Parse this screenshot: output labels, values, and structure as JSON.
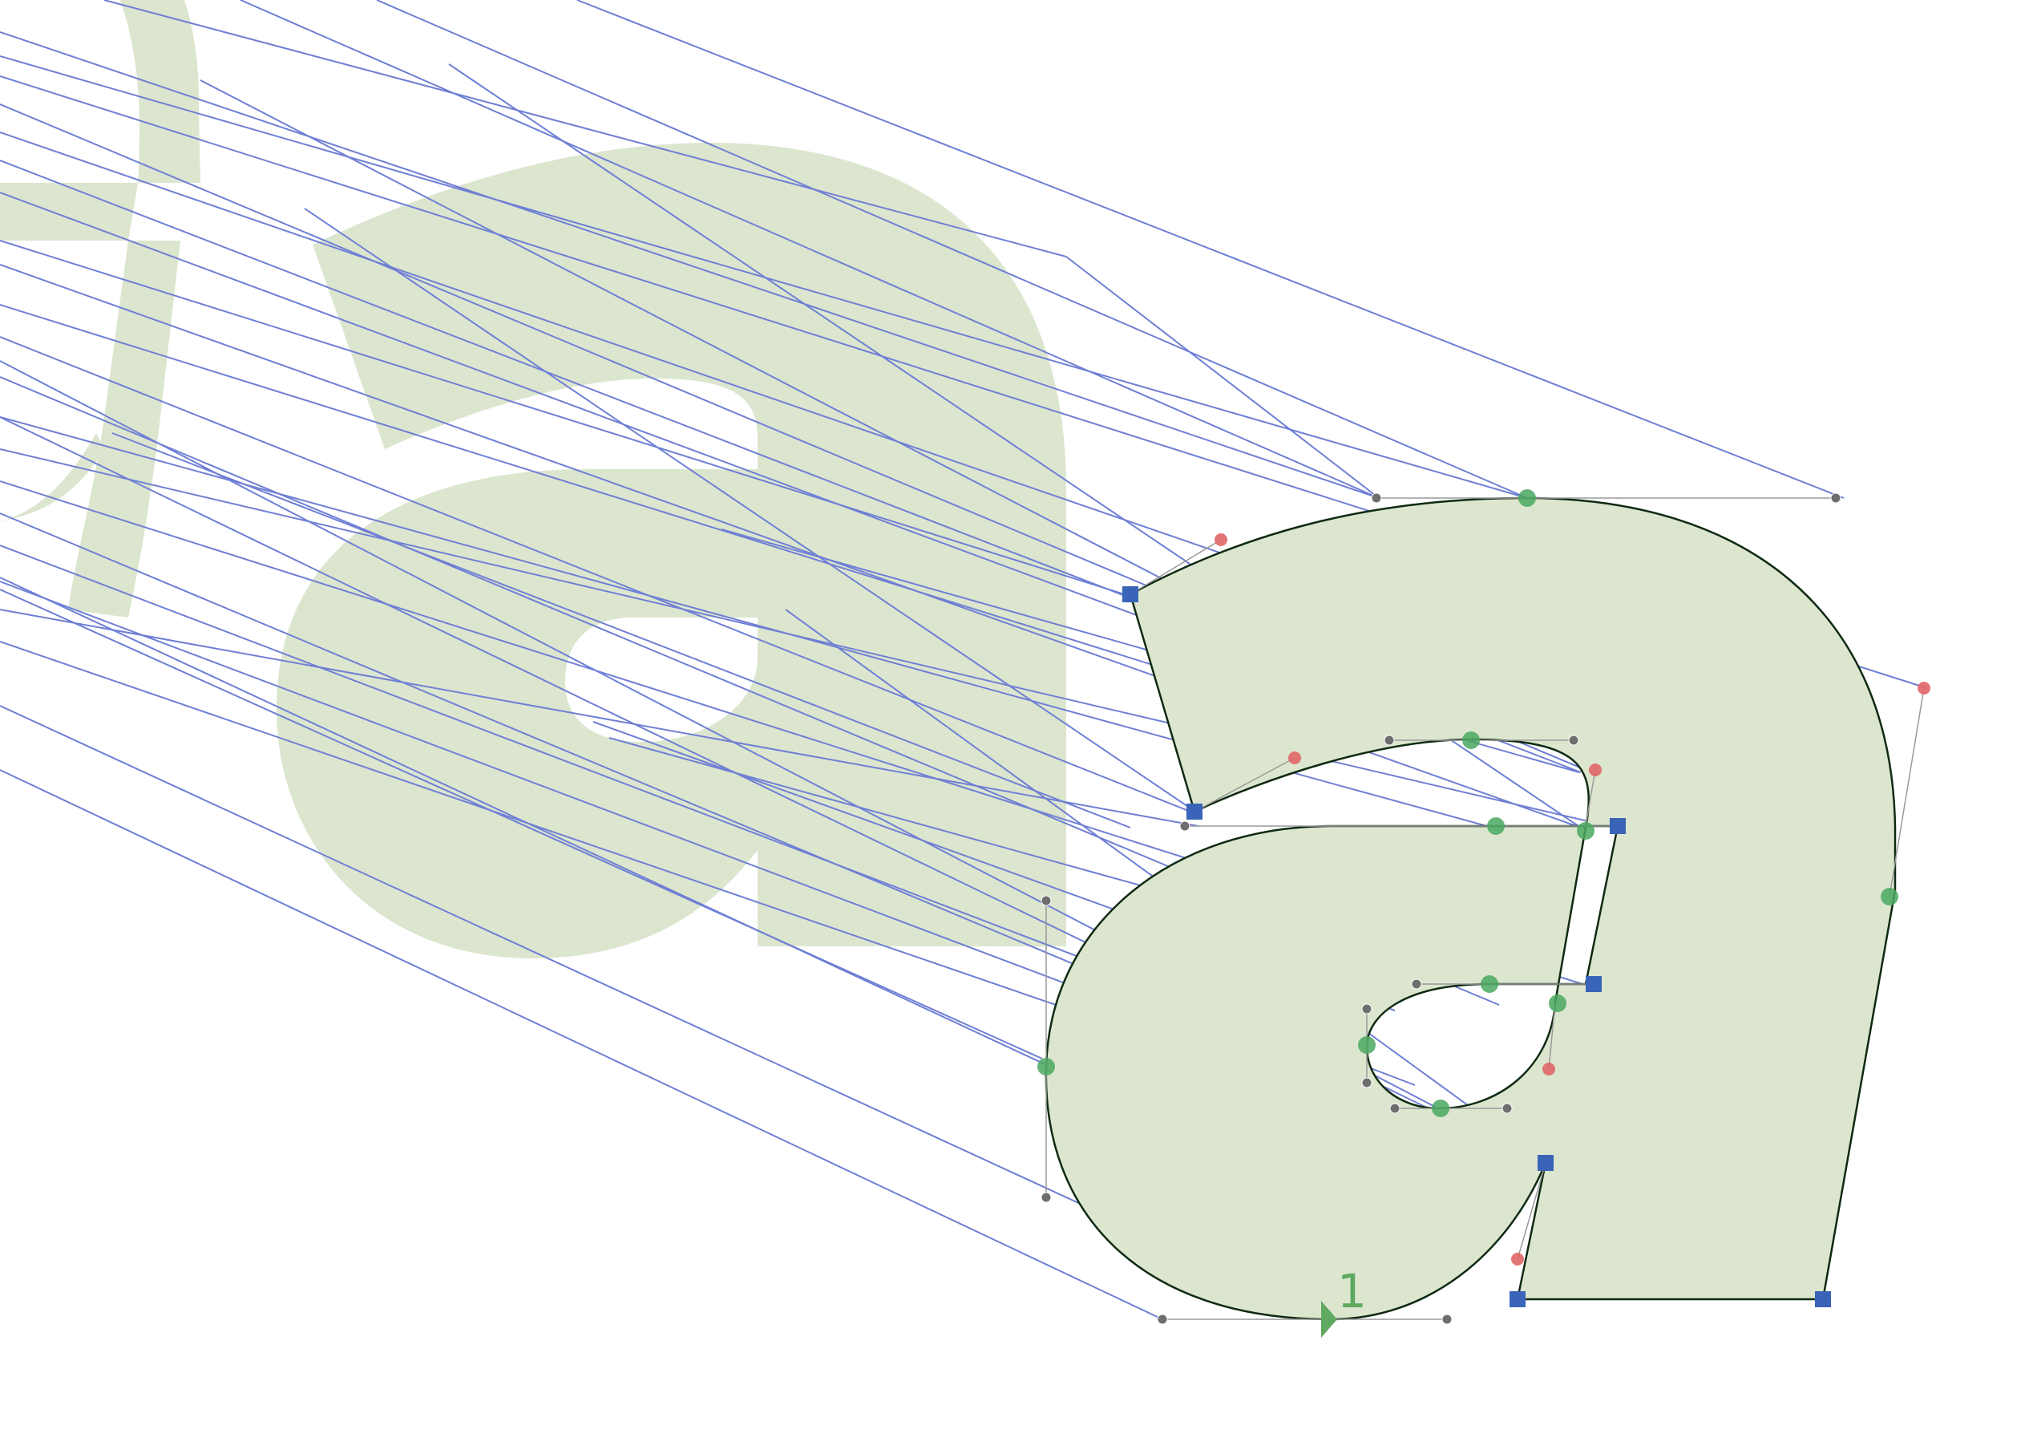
{
  "editor": {
    "view": "glyph-outline",
    "start_point_label": "1"
  },
  "colors": {
    "background": "#ffffff",
    "glyph_fill": "#dce6cf",
    "outline": "#0f2a12",
    "interpolation_line": "#6f7fd4",
    "handle_line": "#9a9a9a",
    "on_curve_smooth": "#4aa860",
    "on_curve_corner": "#3a64b8",
    "off_curve_handle": "#6e6e6e",
    "selected_handle": "#e06666",
    "start_marker": "#5fa860"
  },
  "icons": {
    "corner_point": "square-point-icon",
    "smooth_point": "circle-point-icon",
    "handle": "handle-dot-icon",
    "start": "start-triangle-icon"
  }
}
